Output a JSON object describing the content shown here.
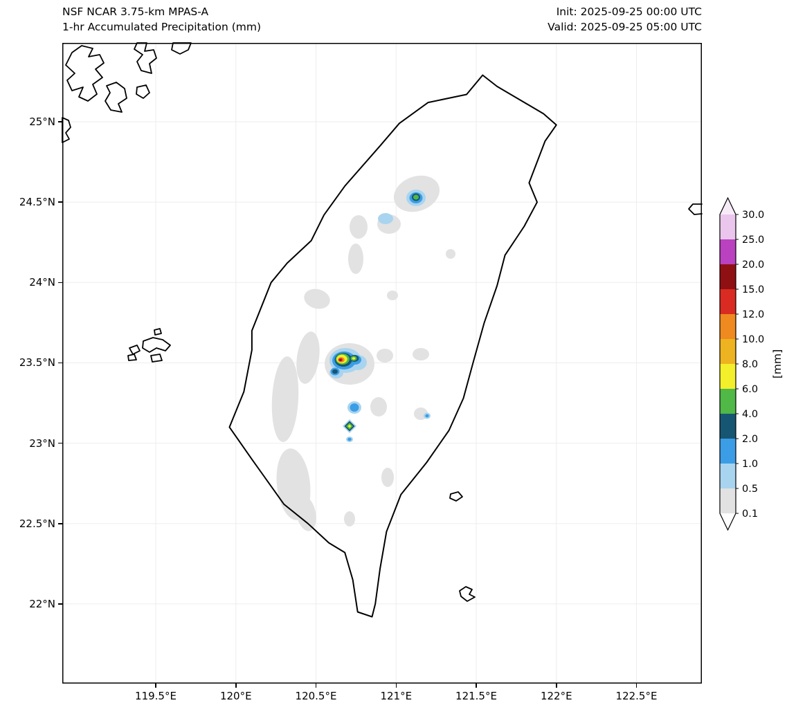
{
  "header": {
    "title_line1": "NSF NCAR 3.75-km MPAS-A",
    "title_line2": "1-hr Accumulated Precipitation (mm)",
    "init_label": "Init: 2025-09-25 00:00 UTC",
    "valid_label": "Valid: 2025-09-25 05:00 UTC"
  },
  "axes": {
    "x_ticks": [
      {
        "lon": 119.5,
        "label": "119.5°E"
      },
      {
        "lon": 120.0,
        "label": "120°E"
      },
      {
        "lon": 120.5,
        "label": "120.5°E"
      },
      {
        "lon": 121.0,
        "label": "121°E"
      },
      {
        "lon": 121.5,
        "label": "121.5°E"
      },
      {
        "lon": 122.0,
        "label": "122°E"
      },
      {
        "lon": 122.5,
        "label": "122.5°E"
      }
    ],
    "y_ticks": [
      {
        "lat": 25.0,
        "label": "25°N"
      },
      {
        "lat": 24.5,
        "label": "24.5°N"
      },
      {
        "lat": 24.0,
        "label": "24°N"
      },
      {
        "lat": 23.5,
        "label": "23.5°N"
      },
      {
        "lat": 23.0,
        "label": "23°N"
      },
      {
        "lat": 22.5,
        "label": "22.5°N"
      },
      {
        "lat": 22.0,
        "label": "22°N"
      }
    ]
  },
  "colorbar": {
    "unit_label": "[mm]",
    "levels": [
      0.1,
      0.5,
      1.0,
      2.0,
      4.0,
      6.0,
      8.0,
      10.0,
      12.0,
      15.0,
      20.0,
      25.0,
      30.0
    ],
    "tick_labels": [
      "0.1",
      "0.5",
      "1.0",
      "2.0",
      "4.0",
      "6.0",
      "8.0",
      "10.0",
      "12.0",
      "15.0",
      "20.0",
      "25.0",
      "30.0"
    ],
    "segment_colors": [
      "#e2e2e2",
      "#a9d4ef",
      "#3b9de5",
      "#175672",
      "#4fb847",
      "#f3ef2b",
      "#eeb320",
      "#ee8a1f",
      "#d92b21",
      "#8f1013",
      "#ba41c0",
      "#eac6ec"
    ],
    "over_color": "#f7ebf8",
    "under_color": "#ffffff"
  },
  "chart_data": {
    "type": "heatmap",
    "title": "1-hr Accumulated Precipitation (mm)",
    "model": "NSF NCAR 3.75-km MPAS-A",
    "init": "2025-09-25 00:00 UTC",
    "valid": "2025-09-25 05:00 UTC",
    "units": "mm",
    "region": "Taiwan and surrounding ocean",
    "lon_range_deg_e": [
      118.92,
      122.92
    ],
    "lat_range_deg_n": [
      21.5,
      25.49
    ],
    "levels_mm": [
      0.1,
      0.5,
      1.0,
      2.0,
      4.0,
      6.0,
      8.0,
      10.0,
      12.0,
      15.0,
      20.0,
      25.0,
      30.0
    ],
    "legend_position": "right",
    "grid": "faint gridlines at labeled ticks",
    "cells": [
      {
        "lon": 121.22,
        "lat": 24.53,
        "peak_mm": "4-6",
        "note": "small convective cell, green core ringed by blue"
      },
      {
        "lon": 121.02,
        "lat": 24.4,
        "peak_mm": "0.5-1",
        "note": "light blue patch"
      },
      {
        "lon": 120.78,
        "lat": 23.5,
        "peak_mm": "12-15",
        "note": "strongest cell; yellow/orange/red core with secondary yellow lobe to the NE"
      },
      {
        "lon": 120.85,
        "lat": 23.22,
        "peak_mm": "1-2",
        "note": "small blue patch"
      },
      {
        "lon": 120.81,
        "lat": 23.12,
        "peak_mm": "6-8",
        "note": "tiny diamond-shaped cell, yellow core with green ring"
      },
      {
        "lon": 120.81,
        "lat": 23.02,
        "peak_mm": "1-2",
        "note": "tiny blue dot"
      },
      {
        "lon": 121.29,
        "lat": 23.17,
        "peak_mm": "1-2",
        "note": "tiny blue dot near east coast"
      },
      {
        "lon": 120.45,
        "lat": 23.2,
        "peak_mm": "0.1-0.5",
        "note": "broad light (gray) precipitation along the Central Mountain Range and western foothills"
      }
    ]
  }
}
